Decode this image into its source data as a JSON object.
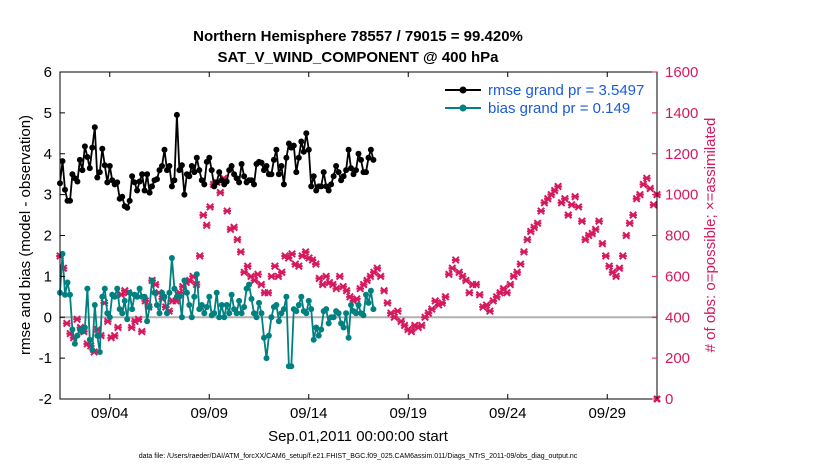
{
  "chart_data": {
    "type": "line",
    "title": "Northern Hemisphere 78557 / 79015 = 99.420%",
    "subtitle": "SAT_V_WIND_COMPONENT @ 400 hPa",
    "xlabel": "Sep.01,2011 00:00:00 start",
    "ylabel_left": "rmse and bias (model - observation)",
    "ylabel_right": "# of obs: o=possible; ×=assimilated",
    "footnote": "data file: /Users/raeder/DAI/ATM_forcXX/CAM6_setup/f.e21.FHIST_BGC.f09_025.CAM6assim.011/Diags_NTrS_2011-09/obs_diag_output.nc",
    "x_range_days": [
      0.5,
      30.5
    ],
    "x_ticks": [
      {
        "day": 3,
        "label": "09/04"
      },
      {
        "day": 8,
        "label": "09/09"
      },
      {
        "day": 13,
        "label": "09/14"
      },
      {
        "day": 18,
        "label": "09/19"
      },
      {
        "day": 23,
        "label": "09/24"
      },
      {
        "day": 28,
        "label": "09/29"
      }
    ],
    "ylim_left": [
      -2,
      6
    ],
    "yticks_left": [
      "-2",
      "-1",
      "0",
      "1",
      "2",
      "3",
      "4",
      "5",
      "6"
    ],
    "ylim_right": [
      0,
      1600
    ],
    "yticks_right": [
      "0",
      "200",
      "400",
      "600",
      "800",
      "1000",
      "1200",
      "1400",
      "1600"
    ],
    "grid": false,
    "zero_line": 0,
    "legend_position": "top-right",
    "legend": [
      "rmse grand pr = 3.5497",
      "bias grand pr = 0.149"
    ],
    "colors": {
      "rmse": "#000000",
      "bias": "#008080",
      "obs": "#d6195e",
      "legend_text": "#1a5bd8",
      "zero_line": "#b0b0b0"
    },
    "x_start_day": 0.5,
    "x_step_days": 0.125,
    "series": [
      {
        "name": "rmse grand pr = 3.5497",
        "axis": "left",
        "values": [
          3.28,
          3.82,
          3.12,
          2.85,
          2.85,
          3.5,
          3.4,
          3.32,
          3.85,
          3.6,
          4.18,
          3.92,
          3.65,
          4.15,
          4.65,
          3.42,
          3.55,
          4.12,
          3.72,
          3.3,
          3.7,
          3.35,
          3.25,
          3.3,
          2.9,
          2.95,
          2.72,
          2.68,
          2.85,
          3.45,
          3.3,
          3.1,
          3.32,
          3.5,
          3.1,
          3.5,
          3.05,
          3.2,
          3.35,
          3.38,
          3.6,
          3.7,
          4.1,
          3.6,
          3.7,
          3.2,
          3.35,
          4.95,
          3.6,
          3.72,
          3.0,
          3.5,
          3.45,
          3.7,
          3.55,
          3.9,
          3.6,
          3.35,
          3.25,
          3.8,
          3.9,
          3.6,
          3.2,
          3.3,
          3.55,
          3.35,
          3.25,
          3.32,
          3.6,
          3.7,
          3.5,
          3.4,
          3.3,
          3.75,
          3.45,
          3.3,
          3.35,
          3.35,
          3.25,
          3.75,
          3.8,
          3.78,
          3.6,
          3.7,
          3.5,
          3.5,
          3.85,
          4.1,
          3.5,
          3.7,
          3.25,
          3.9,
          4.25,
          4.15,
          4.2,
          3.55,
          3.9,
          4.3,
          4.05,
          4.5,
          4.1,
          3.2,
          3.45,
          3.1,
          3.2,
          3.2,
          3.55,
          3.2,
          3.1,
          3.25,
          3.45,
          3.7,
          3.55,
          3.35,
          3.45,
          3.6,
          4.1,
          3.65,
          3.5,
          3.6,
          4.0,
          3.85,
          3.55,
          3.55,
          3.9,
          4.1,
          3.85
        ]
      },
      {
        "name": "bias grand pr = 0.149",
        "axis": "left",
        "values": [
          0.6,
          1.55,
          0.55,
          0.85,
          0.55,
          -0.3,
          -0.65,
          -0.45,
          -0.3,
          -0.35,
          -0.25,
          0.7,
          -0.55,
          -0.8,
          0.3,
          -0.45,
          -0.85,
          0.5,
          0.7,
          0.1,
          0.0,
          0.55,
          0.5,
          0.7,
          0.2,
          0.1,
          0.4,
          -0.05,
          0.6,
          0.2,
          0.55,
          0.5,
          0.7,
          0.5,
          0.5,
          -0.1,
          0.25,
          0.9,
          0.6,
          0.3,
          0.1,
          0.6,
          0.5,
          0.1,
          0.6,
          1.45,
          0.7,
          0.5,
          0.5,
          0.0,
          0.9,
          0.6,
          0.3,
          0.0,
          0.5,
          1.05,
          0.2,
          0.3,
          0.1,
          0.25,
          0.5,
          0.05,
          0.1,
          0.6,
          0.0,
          0.3,
          0.0,
          0.3,
          0.1,
          0.55,
          0.2,
          0.1,
          0.4,
          0.1,
          0.25,
          0.7,
          0.8,
          0.45,
          0.1,
          0.0,
          0.35,
          0.1,
          -0.5,
          -1.0,
          -0.45,
          0.0,
          0.25,
          0.3,
          -0.1,
          0.1,
          0.2,
          0.5,
          -1.2,
          -1.2,
          0.2,
          0.15,
          0.3,
          0.5,
          0.15,
          0.1,
          0.4,
          0.2,
          -0.55,
          -0.25,
          -0.45,
          -0.3,
          0.15,
          0.2,
          -0.15,
          0.0,
          0.0,
          0.15,
          0.1,
          -0.15,
          -0.25,
          0.1,
          -0.5,
          0.3,
          0.15,
          0.1,
          0.3,
          0.1,
          0.05,
          0.55,
          0.35,
          0.65,
          0.2
        ]
      },
      {
        "name": "",
        "axis": "right",
        "marker": "x",
        "values": [
          700,
          640,
          370,
          320,
          300,
          390,
          350,
          330,
          270,
          260,
          230,
          340,
          310,
          470,
          380,
          300,
          310,
          350,
          510,
          530,
          520,
          350,
          380,
          390,
          330,
          480,
          450,
          580,
          560,
          520,
          490,
          450,
          430,
          480,
          480,
          520,
          550,
          570,
          580,
          600,
          560,
          700,
          900,
          850,
          940,
          1050,
          1060,
          1010,
          1080,
          920,
          830,
          840,
          780,
          720,
          620,
          650,
          600,
          580,
          610,
          560,
          520,
          520,
          600,
          650,
          600,
          620,
          700,
          690,
          710,
          660,
          650,
          700,
          720,
          690,
          680,
          660,
          590,
          560,
          600,
          570,
          560,
          540,
          600,
          550,
          530,
          500,
          480,
          490,
          540,
          560,
          580,
          600,
          620,
          640,
          600,
          530,
          470,
          420,
          400,
          430,
          380,
          360,
          340,
          330,
          360,
          350,
          360,
          400,
          420,
          440,
          480,
          460,
          470,
          500,
          610,
          640,
          680,
          620,
          600,
          580,
          520,
          560,
          560,
          510,
          450,
          460,
          430,
          480,
          500,
          520,
          540,
          520,
          560,
          600,
          620,
          660,
          720,
          780,
          820,
          840,
          860,
          920,
          960,
          980,
          1000,
          1020,
          1040,
          960,
          980,
          900,
          950,
          990,
          940,
          870,
          780,
          800,
          810,
          830,
          870,
          760,
          700,
          650,
          620,
          600,
          640,
          700,
          800,
          860,
          900,
          980,
          1000,
          1050,
          1080,
          1030,
          950,
          1000
        ]
      }
    ]
  }
}
